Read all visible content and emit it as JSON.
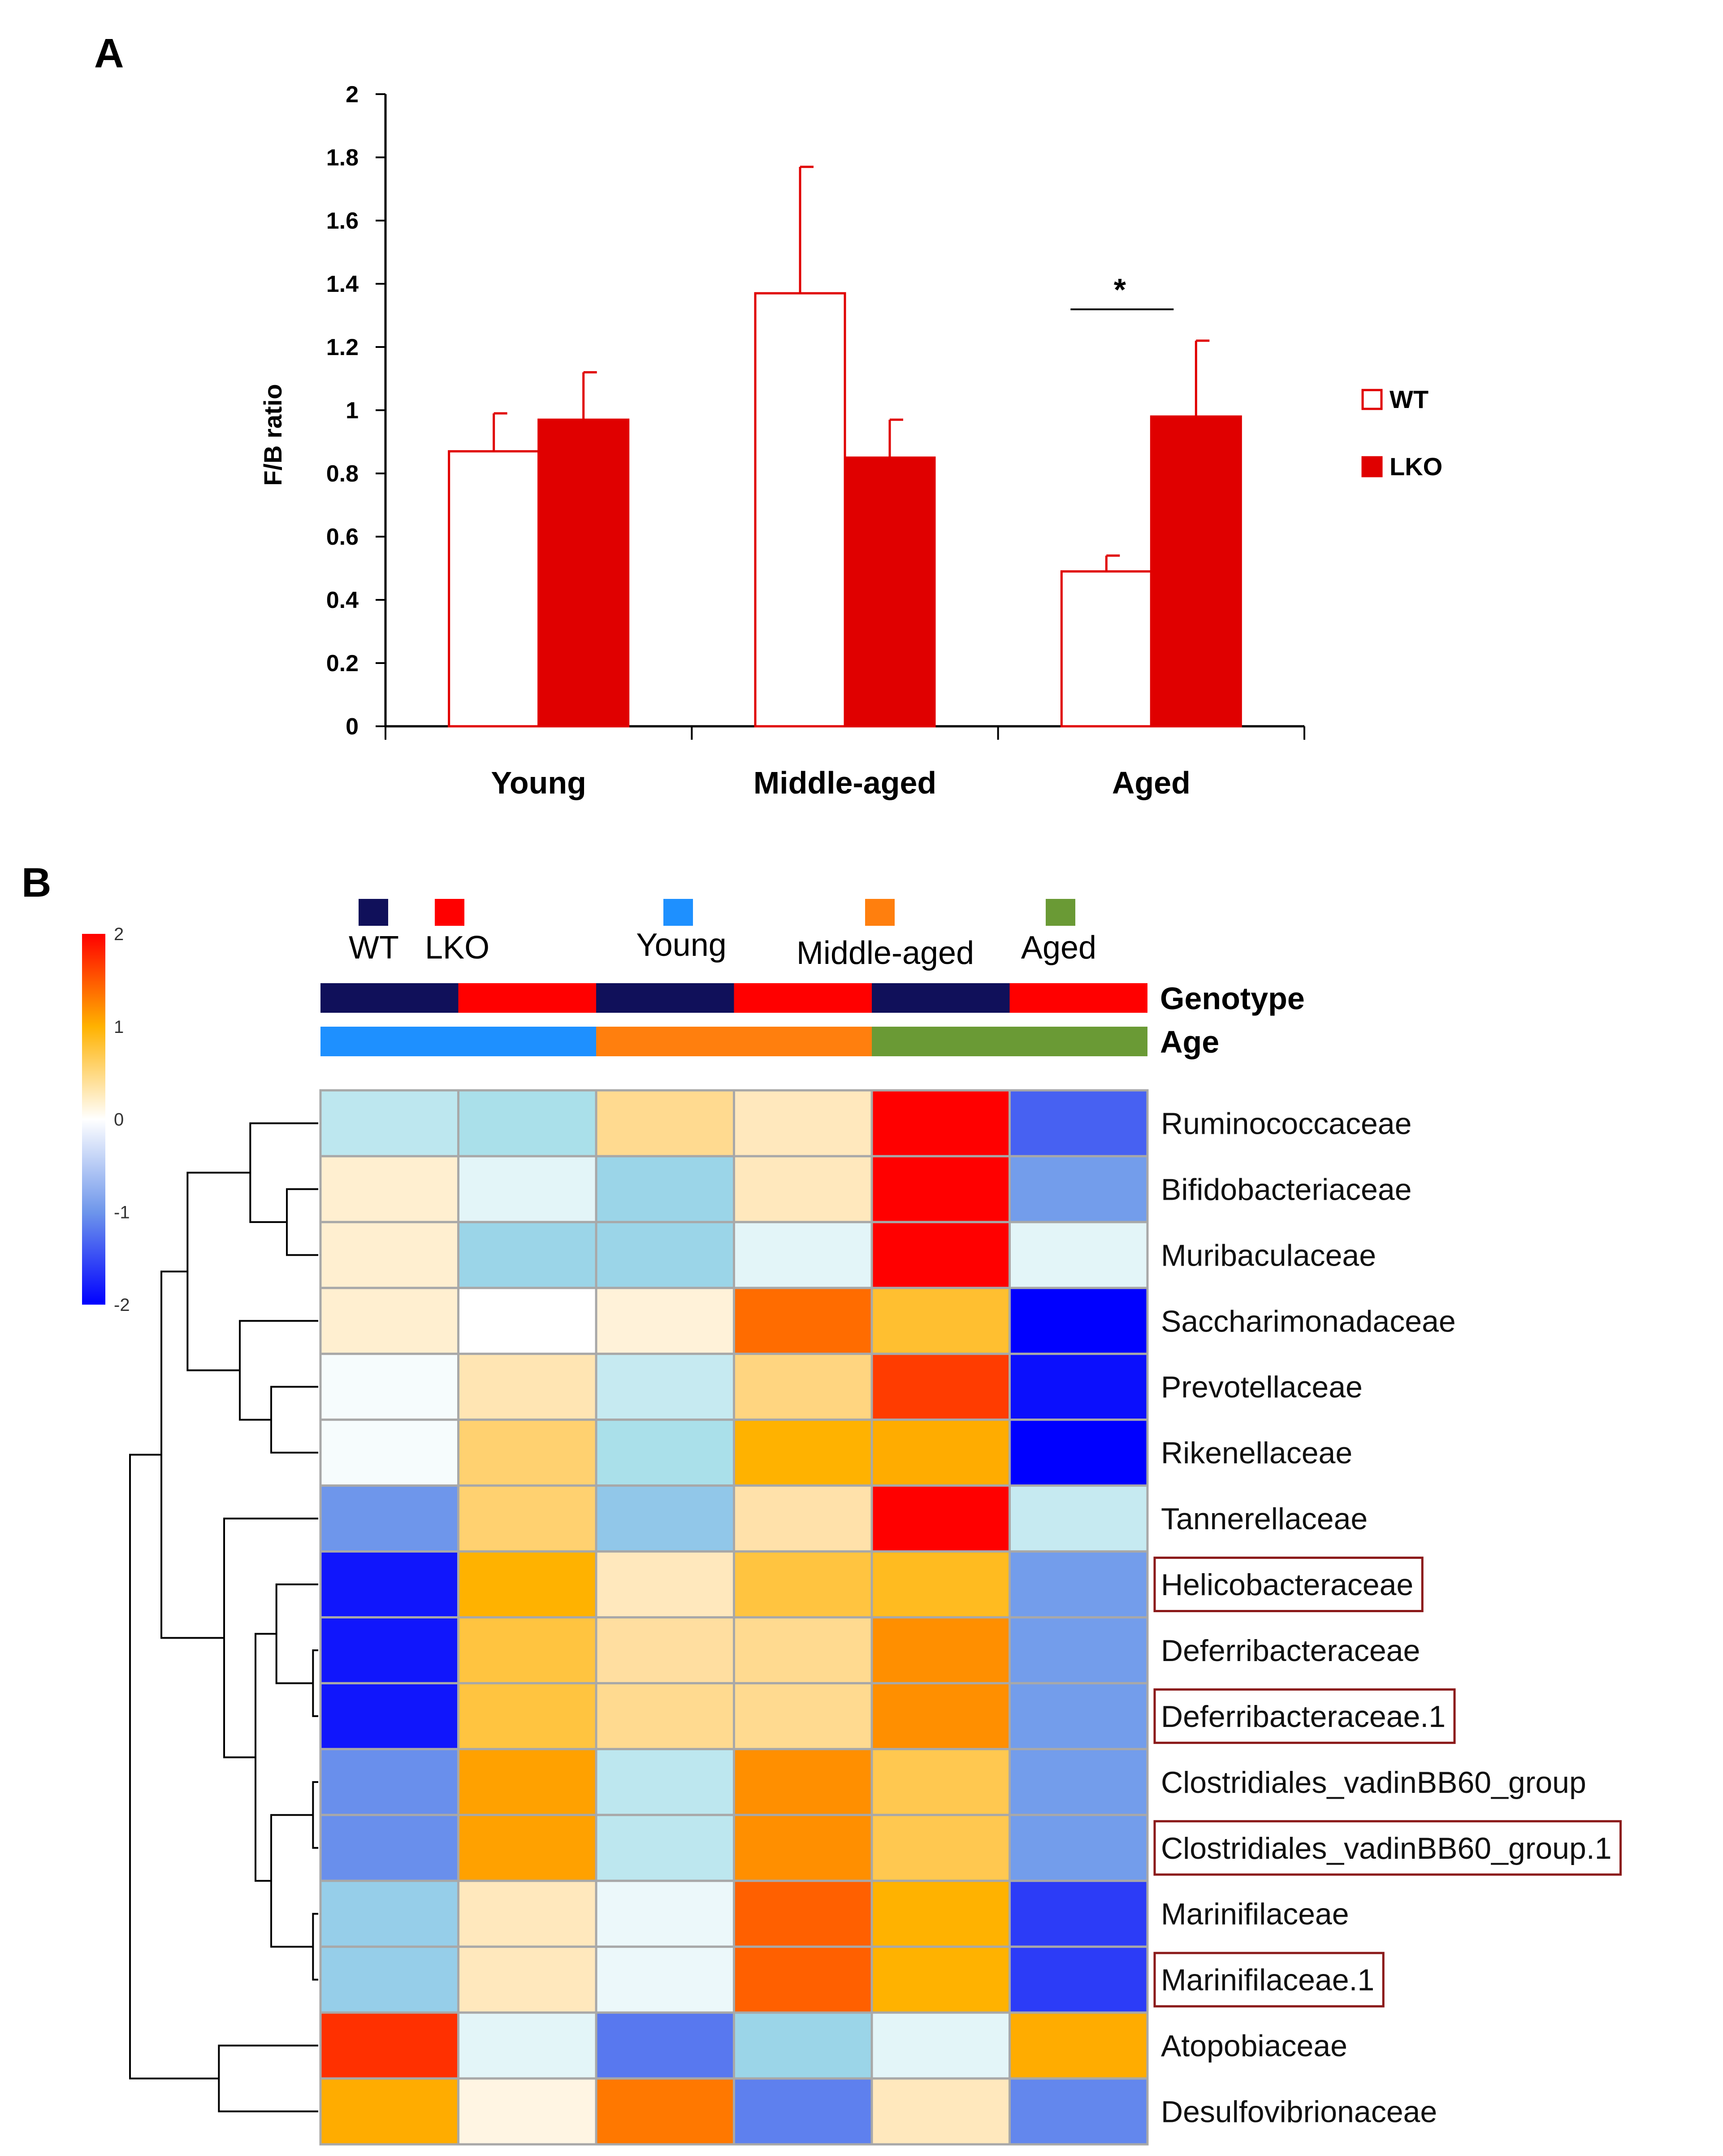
{
  "chart_data": [
    {
      "panel": "A",
      "type": "bar",
      "ylabel": "F/B ratio",
      "ylim": [
        0,
        2
      ],
      "yticks": [
        "0",
        "0.2",
        "0.4",
        "0.6",
        "0.8",
        "1",
        "1.2",
        "1.4",
        "1.6",
        "1.8",
        "2"
      ],
      "categories": [
        "Young",
        "Middle-aged",
        "Aged"
      ],
      "series": [
        {
          "name": "WT",
          "values": [
            0.87,
            1.37,
            0.49
          ],
          "errors": [
            0.12,
            0.4,
            0.05
          ],
          "fill": "#ffffff",
          "stroke": "#e00000"
        },
        {
          "name": "LKO",
          "values": [
            0.97,
            0.85,
            0.98
          ],
          "errors": [
            0.15,
            0.12,
            0.24
          ],
          "fill": "#e00000",
          "stroke": "#e00000"
        }
      ],
      "significance": {
        "category": "Aged",
        "label": "*"
      },
      "legend_position": "right"
    },
    {
      "panel": "B",
      "type": "heatmap",
      "scale": {
        "min": -2,
        "max": 2,
        "ticks": [
          "2",
          "1",
          "0",
          "-1",
          "-2"
        ]
      },
      "legend_items": [
        {
          "label": "WT",
          "color": "#10105a"
        },
        {
          "label": "LKO",
          "color": "#ff0000"
        },
        {
          "label": "Young",
          "color": "#1e90ff"
        },
        {
          "label": "Middle-aged",
          "color": "#ff7f0e"
        },
        {
          "label": "Aged",
          "color": "#6a9a35"
        }
      ],
      "annotation_tracks": [
        {
          "title": "Genotype",
          "values": [
            "WT",
            "LKO",
            "WT",
            "LKO",
            "WT",
            "LKO"
          ]
        },
        {
          "title": "Age",
          "values": [
            "Young",
            "Young",
            "Middle-aged",
            "Middle-aged",
            "Aged",
            "Aged"
          ]
        }
      ],
      "rows": [
        "Ruminococcaceae",
        "Bifidobacteriaceae",
        "Muribaculaceae",
        "Saccharimonadaceae",
        "Prevotellaceae",
        "Rikenellaceae",
        "Tannerellaceae",
        "Helicobacteraceae",
        "Deferribacteraceae",
        "Deferribacteraceae.1",
        "Clostridiales_vadinBB60_group",
        "Clostridiales_vadinBB60_group.1",
        "Marinifilaceae",
        "Marinifilaceae.1",
        "Atopobiaceae",
        "Desulfovibrionaceae"
      ],
      "boxed_rows": [
        "Helicobacteraceae",
        "Deferribacteraceae.1",
        "Clostridiales_vadinBB60_group.1",
        "Marinifilaceae.1"
      ],
      "values": [
        [
          -0.35,
          -0.45,
          0.55,
          0.35,
          2.2,
          -1.35
        ],
        [
          0.25,
          -0.15,
          -0.55,
          0.35,
          2.3,
          -0.95
        ],
        [
          0.25,
          -0.55,
          -0.55,
          -0.15,
          2.3,
          -0.15
        ],
        [
          0.25,
          0.0,
          0.2,
          1.55,
          0.85,
          -2.3
        ],
        [
          -0.05,
          0.4,
          -0.3,
          0.6,
          1.75,
          -1.9
        ],
        [
          -0.05,
          0.65,
          -0.45,
          1.0,
          1.05,
          -2.05
        ],
        [
          -1.0,
          0.65,
          -0.65,
          0.45,
          2.05,
          -0.3
        ],
        [
          -1.85,
          1.0,
          0.35,
          0.8,
          0.9,
          -0.95
        ],
        [
          -1.85,
          0.8,
          0.5,
          0.55,
          1.3,
          -0.95
        ],
        [
          -1.85,
          0.8,
          0.55,
          0.55,
          1.3,
          -0.95
        ],
        [
          -1.05,
          1.15,
          -0.35,
          1.3,
          0.75,
          -0.95
        ],
        [
          -1.05,
          1.15,
          -0.35,
          1.3,
          0.75,
          -0.95
        ],
        [
          -0.6,
          0.35,
          -0.1,
          1.6,
          1.0,
          -1.6
        ],
        [
          -0.6,
          0.35,
          -0.1,
          1.6,
          1.0,
          -1.6
        ],
        [
          1.8,
          -0.15,
          -1.2,
          -0.55,
          -0.15,
          1.05
        ],
        [
          1.05,
          0.15,
          1.5,
          -1.15,
          0.35,
          -1.1
        ]
      ],
      "dendrogram": {
        "merges": [
          [
            1,
            2,
            0.6
          ],
          [
            0,
            16,
            1.3
          ],
          [
            4,
            5,
            0.9
          ],
          [
            3,
            18,
            1.5
          ],
          [
            17,
            19,
            2.5
          ],
          [
            8,
            9,
            0.1
          ],
          [
            7,
            21,
            0.8
          ],
          [
            10,
            11,
            0.1
          ],
          [
            12,
            13,
            0.1
          ],
          [
            23,
            24,
            0.9
          ],
          [
            22,
            25,
            1.2
          ],
          [
            6,
            26,
            1.8
          ],
          [
            20,
            27,
            3.0
          ],
          [
            14,
            15,
            1.9
          ],
          [
            28,
            29,
            3.6
          ]
        ]
      }
    }
  ]
}
